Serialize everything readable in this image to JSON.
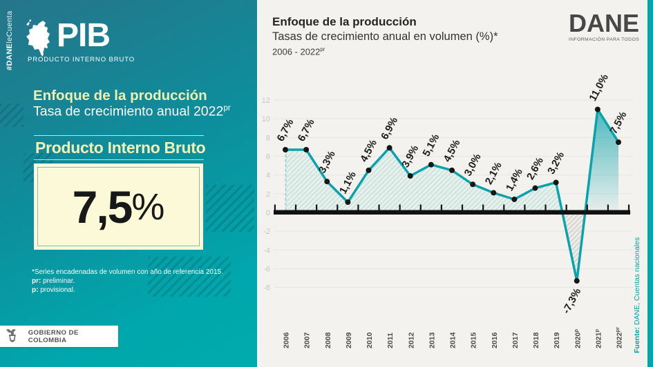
{
  "left_panel": {
    "hashtag": {
      "bold": "#DANE",
      "rest": "leCuenta"
    },
    "logo": {
      "title": "PIB",
      "subtitle": "PRODUCTO INTERNO BRUTO"
    },
    "heading_bold": "Enfoque de la producción",
    "heading_line2": "Tasa de crecimiento anual 2022",
    "heading_line2_sup": "pr",
    "box_title": "Producto Interno Bruto",
    "big_value": "7,5",
    "big_value_unit": "%",
    "footnotes": {
      "line1": "*Series encadenadas de volumen con año de referencia 2015.",
      "line2_prefix": "pr:",
      "line2_text": " preliminar.",
      "line3_prefix": "p:",
      "line3_text": " provisional."
    },
    "badge": {
      "label": "GOBIERNO DE COLOMBIA"
    }
  },
  "chart_header": {
    "title": "Enfoque de la producción",
    "subtitle": "Tasas de crecimiento anual en volumen (%)*",
    "range": "2006 - 2022",
    "range_sup": "pr"
  },
  "dane_logo": {
    "name": "DANE",
    "tagline": "INFORMACIÓN PARA TODOS"
  },
  "source": {
    "prefix": "Fuente:",
    "text": " DANE, Cuentas nacionales"
  },
  "chart_data": {
    "type": "line",
    "title": "Enfoque de la producción — Tasas de crecimiento anual en volumen (%), 2006 - 2022pr",
    "categories": [
      "2006",
      "2007",
      "2008",
      "2009",
      "2010",
      "2011",
      "2012",
      "2013",
      "2014",
      "2015",
      "2016",
      "2017",
      "2018",
      "2019",
      "2020",
      "2021",
      "2022"
    ],
    "category_sups": [
      "",
      "",
      "",
      "",
      "",
      "",
      "",
      "",
      "",
      "",
      "",
      "",
      "",
      "",
      "p",
      "p",
      "pr"
    ],
    "values": [
      6.7,
      6.7,
      3.3,
      1.1,
      4.5,
      6.9,
      3.9,
      5.1,
      4.5,
      3.0,
      2.1,
      1.4,
      2.6,
      3.2,
      -7.3,
      11.0,
      7.5
    ],
    "point_labels": [
      "6,7%",
      "6,7%",
      "3,3%",
      "1,1%",
      "4,5%",
      "6,9%",
      "3,9%",
      "5,1%",
      "4,5%",
      "3,0%",
      "2,1%",
      "1,4%",
      "2,6%",
      "3,2%",
      "-7,3%",
      "11,0%",
      "7,5%"
    ],
    "ylim": [
      -8,
      12
    ],
    "ytick_step": 2,
    "yticks": [
      -8,
      -6,
      -4,
      -2,
      0,
      2,
      4,
      6,
      8,
      10,
      12
    ],
    "grid": true,
    "legend": false,
    "highlight_from_index": 15,
    "colors": {
      "line": "#0ba3ab",
      "dot": "#161616",
      "area_hatch": "#cfe7e2",
      "negative_hatch": "#dcd9d4",
      "highlight_top": "#0ba3ab",
      "label": "#1d1d1d",
      "axis": "#121212",
      "ytick": "#c7c5c1",
      "xtick": "#4b4b4b"
    }
  }
}
